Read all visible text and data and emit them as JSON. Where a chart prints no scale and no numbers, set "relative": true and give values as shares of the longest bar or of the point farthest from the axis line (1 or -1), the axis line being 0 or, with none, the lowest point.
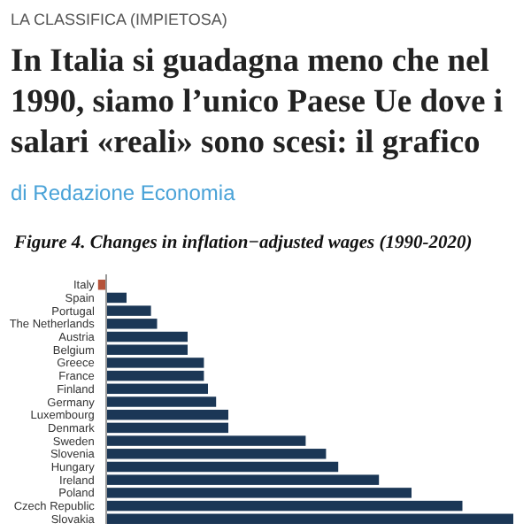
{
  "chart_data": {
    "type": "bar",
    "orientation": "horizontal",
    "relative": true,
    "title": "In Italia si guadagna meno che nel 1990, siamo l’unico Paese Ue dove i salari «reali» sono scesi: il grafico",
    "subtitle": "Figure 4. Changes in inflation−adjusted wages (1990-2020)",
    "annotations": [
      "LA CLASSIFICA (IMPIETOSA)",
      "di Redazione Economia"
    ],
    "categories": [
      "Italy",
      "Spain",
      "Portugal",
      "The Netherlands",
      "Austria",
      "Belgium",
      "Greece",
      "France",
      "Finland",
      "Germany",
      "Luxembourg",
      "Denmark",
      "Sweden",
      "Slovenia",
      "Hungary",
      "Ireland",
      "Poland",
      "Czech Republic",
      "Slovakia"
    ],
    "values": [
      -0.02,
      0.05,
      0.11,
      0.125,
      0.2,
      0.2,
      0.24,
      0.24,
      0.25,
      0.27,
      0.3,
      0.3,
      0.49,
      0.54,
      0.57,
      0.67,
      0.75,
      0.875,
      1
    ],
    "colors": [
      "#b5533a",
      "#1b3756",
      "#1b3756",
      "#1b3756",
      "#1b3756",
      "#1b3756",
      "#1b3756",
      "#1b3756",
      "#1b3756",
      "#1b3756",
      "#1b3756",
      "#1b3756",
      "#1b3756",
      "#1b3756",
      "#1b3756",
      "#1b3756",
      "#1b3756",
      "#1b3756",
      "#1b3756"
    ]
  }
}
